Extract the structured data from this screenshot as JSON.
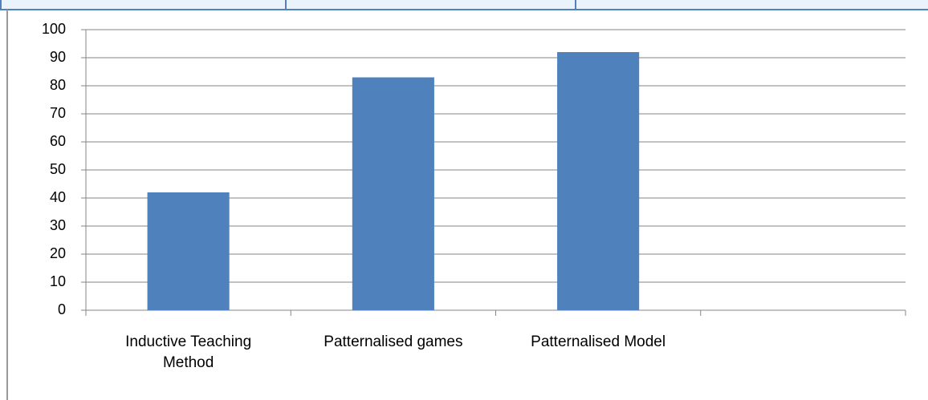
{
  "chart_data": {
    "type": "bar",
    "categories": [
      "Inductive Teaching Method",
      "Patternalised games",
      "Patternalised Model",
      null
    ],
    "values": [
      42,
      83,
      92,
      null
    ],
    "color": "#4f81bd",
    "ylim": [
      0,
      100
    ],
    "yticks": [
      0,
      10,
      20,
      30,
      40,
      50,
      60,
      70,
      80,
      90,
      100
    ],
    "grid": true
  }
}
